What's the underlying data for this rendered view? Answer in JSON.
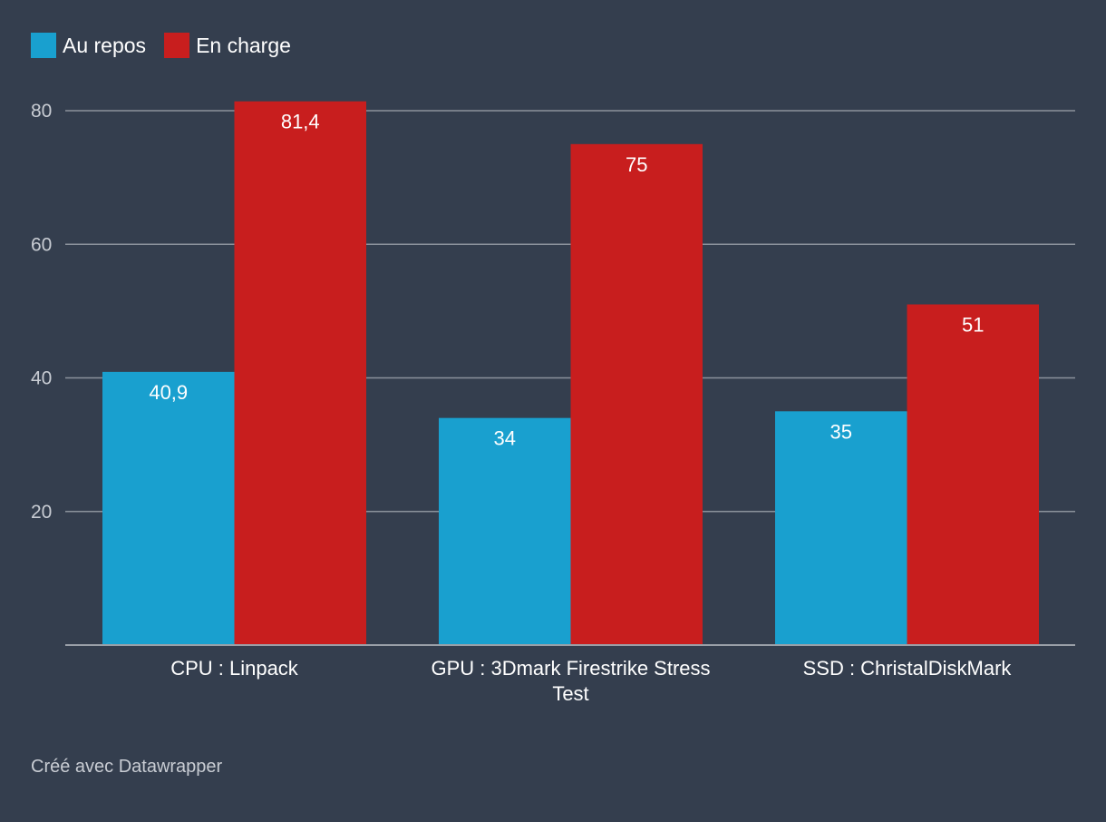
{
  "legend": {
    "items": [
      {
        "label": "Au repos",
        "color": "#19a0cf"
      },
      {
        "label": "En charge",
        "color": "#c81e1e"
      }
    ]
  },
  "footer": {
    "credit": "Créé avec Datawrapper"
  },
  "colors": {
    "background": "#343e4e",
    "grid": "#8b929c",
    "axis_text": "#c8ccd3",
    "label_text": "#ffffff"
  },
  "chart_data": {
    "type": "bar",
    "title": "",
    "xlabel": "",
    "ylabel": "",
    "ylim": [
      0,
      80
    ],
    "yticks": [
      20,
      40,
      60,
      80
    ],
    "grid": true,
    "legend_position": "top-left",
    "categories": [
      [
        "CPU : Linpack"
      ],
      [
        "GPU : 3Dmark Firestrike Stress",
        "Test"
      ],
      [
        "SSD : ChristalDiskMark"
      ]
    ],
    "series": [
      {
        "name": "Au repos",
        "color": "#19a0cf",
        "values": [
          40.9,
          34,
          35
        ],
        "labels": [
          "40,9",
          "34",
          "35"
        ]
      },
      {
        "name": "En charge",
        "color": "#c81e1e",
        "values": [
          81.4,
          75,
          51
        ],
        "labels": [
          "81,4",
          "75",
          "51"
        ]
      }
    ]
  }
}
